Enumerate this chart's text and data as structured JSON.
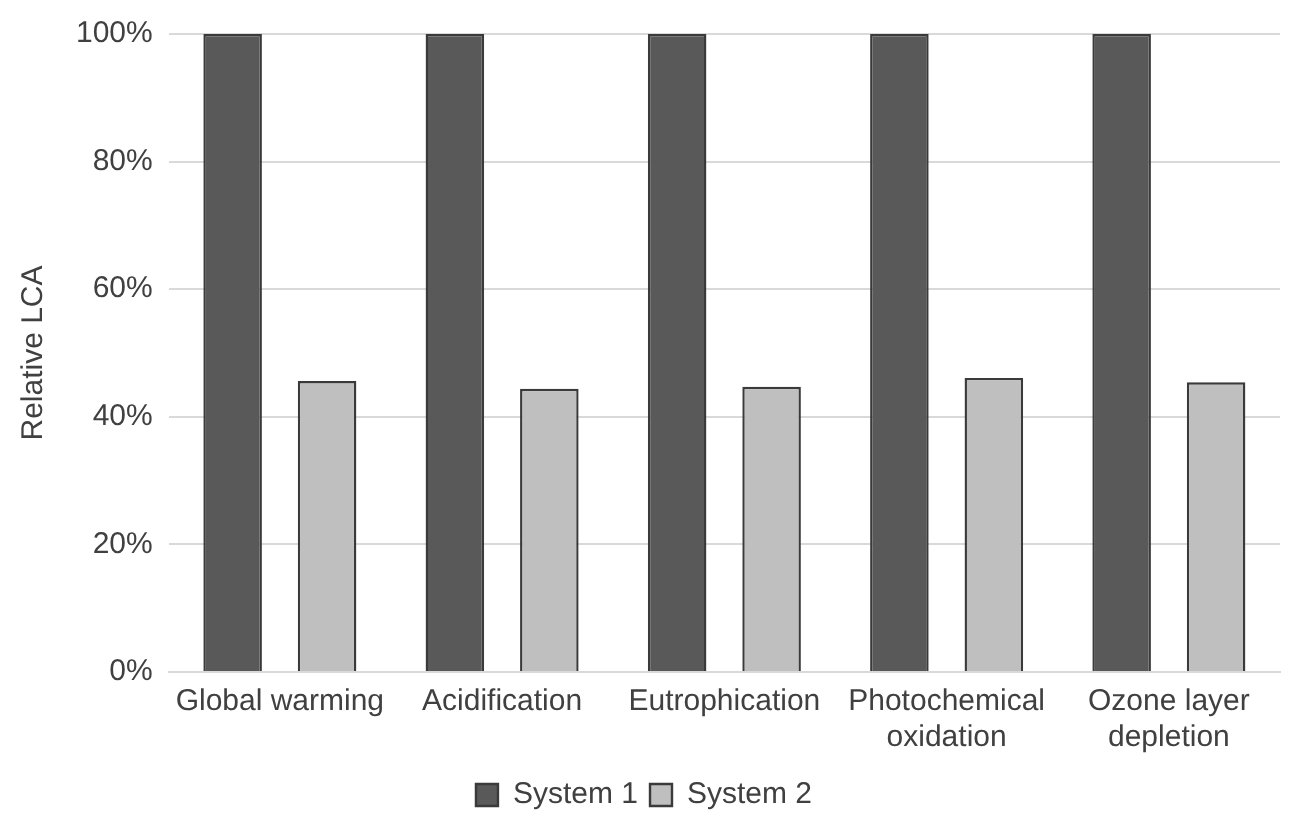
{
  "chart_data": {
    "type": "bar",
    "ylabel": "Relative LCA",
    "categories": [
      "Global warming",
      "Acidification",
      "Eutrophication",
      "Photochemical oxidation",
      "Ozone layer depletion"
    ],
    "series": [
      {
        "name": "System 1",
        "color": "#595959",
        "values": [
          100,
          100,
          100,
          100,
          100
        ]
      },
      {
        "name": "System 2",
        "color": "#bfbfbf",
        "values": [
          45.6,
          44.4,
          44.7,
          46.1,
          45.4
        ]
      }
    ],
    "ylim": [
      0,
      100
    ],
    "yticks": [
      {
        "value": 0,
        "label": "0%"
      },
      {
        "value": 20,
        "label": "20%"
      },
      {
        "value": 40,
        "label": "40%"
      },
      {
        "value": 60,
        "label": "60%"
      },
      {
        "value": 80,
        "label": "80%"
      },
      {
        "value": 100,
        "label": "100%"
      }
    ],
    "grid": "y",
    "legend": "bottom"
  }
}
